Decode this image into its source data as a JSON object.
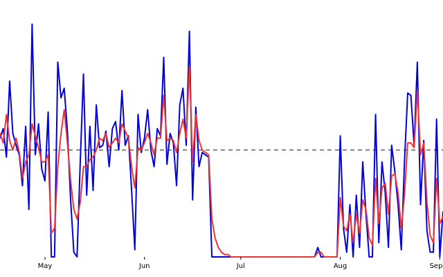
{
  "chart_data": {
    "type": "line",
    "title": "",
    "xlabel": "",
    "ylabel": "",
    "x_ticks": [
      {
        "label": "May",
        "day": 31
      },
      {
        "label": "Jun",
        "day": 62
      },
      {
        "label": "Jul",
        "day": 92
      },
      {
        "label": "Aug",
        "day": 123
      },
      {
        "label": "Sep",
        "day": 154
      }
    ],
    "xlim": [
      17,
      155
    ],
    "ylim": [
      0,
      100
    ],
    "grid": false,
    "legend": "none",
    "reference_line": {
      "value": 45,
      "style": "dashed",
      "color": "#808080"
    },
    "series": [
      {
        "color": "#0000dd",
        "values": [
          50,
          54,
          42,
          74,
          52,
          47,
          43,
          30,
          55,
          20,
          98,
          43,
          56,
          37,
          32,
          61,
          0,
          0,
          82,
          67,
          71,
          53,
          24,
          2,
          0,
          40,
          77,
          26,
          55,
          28,
          64,
          46,
          47,
          53,
          38,
          54,
          57,
          45,
          70,
          47,
          51,
          28,
          3,
          60,
          44,
          50,
          62,
          45,
          38,
          54,
          51,
          84,
          39,
          52,
          48,
          30,
          64,
          71,
          47,
          95,
          24,
          63,
          38,
          44,
          43,
          42,
          0,
          0,
          0,
          0,
          0,
          0,
          0,
          0,
          0,
          0,
          0,
          0,
          0,
          0,
          0,
          0,
          0,
          0,
          0,
          0,
          0,
          0,
          0,
          0,
          0,
          0,
          0,
          0,
          0,
          0,
          0,
          0,
          0,
          4,
          0,
          0,
          0,
          0,
          0,
          0,
          51,
          12,
          2,
          22,
          0,
          26,
          4,
          40,
          18,
          0,
          0,
          60,
          6,
          40,
          27,
          4,
          47,
          36,
          22,
          3,
          40,
          69,
          68,
          47,
          82,
          22,
          49,
          11,
          2,
          2,
          58,
          0,
          19,
          3,
          45,
          4,
          94,
          36,
          31,
          47,
          86,
          38,
          68,
          18,
          56,
          43,
          66,
          24,
          75,
          68,
          36,
          38,
          62,
          64,
          84
        ]
      },
      {
        "color": "#ee3333",
        "values": [
          52,
          48,
          60,
          49,
          45,
          50,
          44,
          33,
          40,
          43,
          56,
          51,
          46,
          40,
          40,
          43,
          10,
          12,
          38,
          52,
          62,
          48,
          32,
          20,
          16,
          23,
          38,
          38,
          41,
          42,
          45,
          50,
          49,
          52,
          46,
          48,
          50,
          48,
          56,
          53,
          50,
          38,
          29,
          46,
          45,
          48,
          52,
          48,
          43,
          50,
          50,
          68,
          49,
          50,
          49,
          44,
          52,
          58,
          50,
          80,
          40,
          60,
          49,
          45,
          44,
          43,
          16,
          8,
          4,
          2,
          1,
          1,
          0,
          0,
          0,
          0,
          0,
          0,
          0,
          0,
          0,
          0,
          0,
          0,
          0,
          0,
          0,
          0,
          0,
          0,
          0,
          0,
          0,
          0,
          0,
          0,
          0,
          0,
          0,
          2,
          2,
          0,
          0,
          0,
          0,
          0,
          25,
          13,
          11,
          18,
          6,
          18,
          10,
          24,
          20,
          8,
          5,
          33,
          14,
          29,
          31,
          18,
          34,
          35,
          27,
          12,
          26,
          48,
          48,
          46,
          70,
          43,
          48,
          23,
          9,
          6,
          33,
          14,
          17,
          9,
          26,
          17,
          62,
          40,
          36,
          42,
          68,
          48,
          58,
          37,
          48,
          45,
          56,
          42,
          69,
          52,
          47,
          53,
          58,
          55,
          71
        ]
      }
    ]
  }
}
